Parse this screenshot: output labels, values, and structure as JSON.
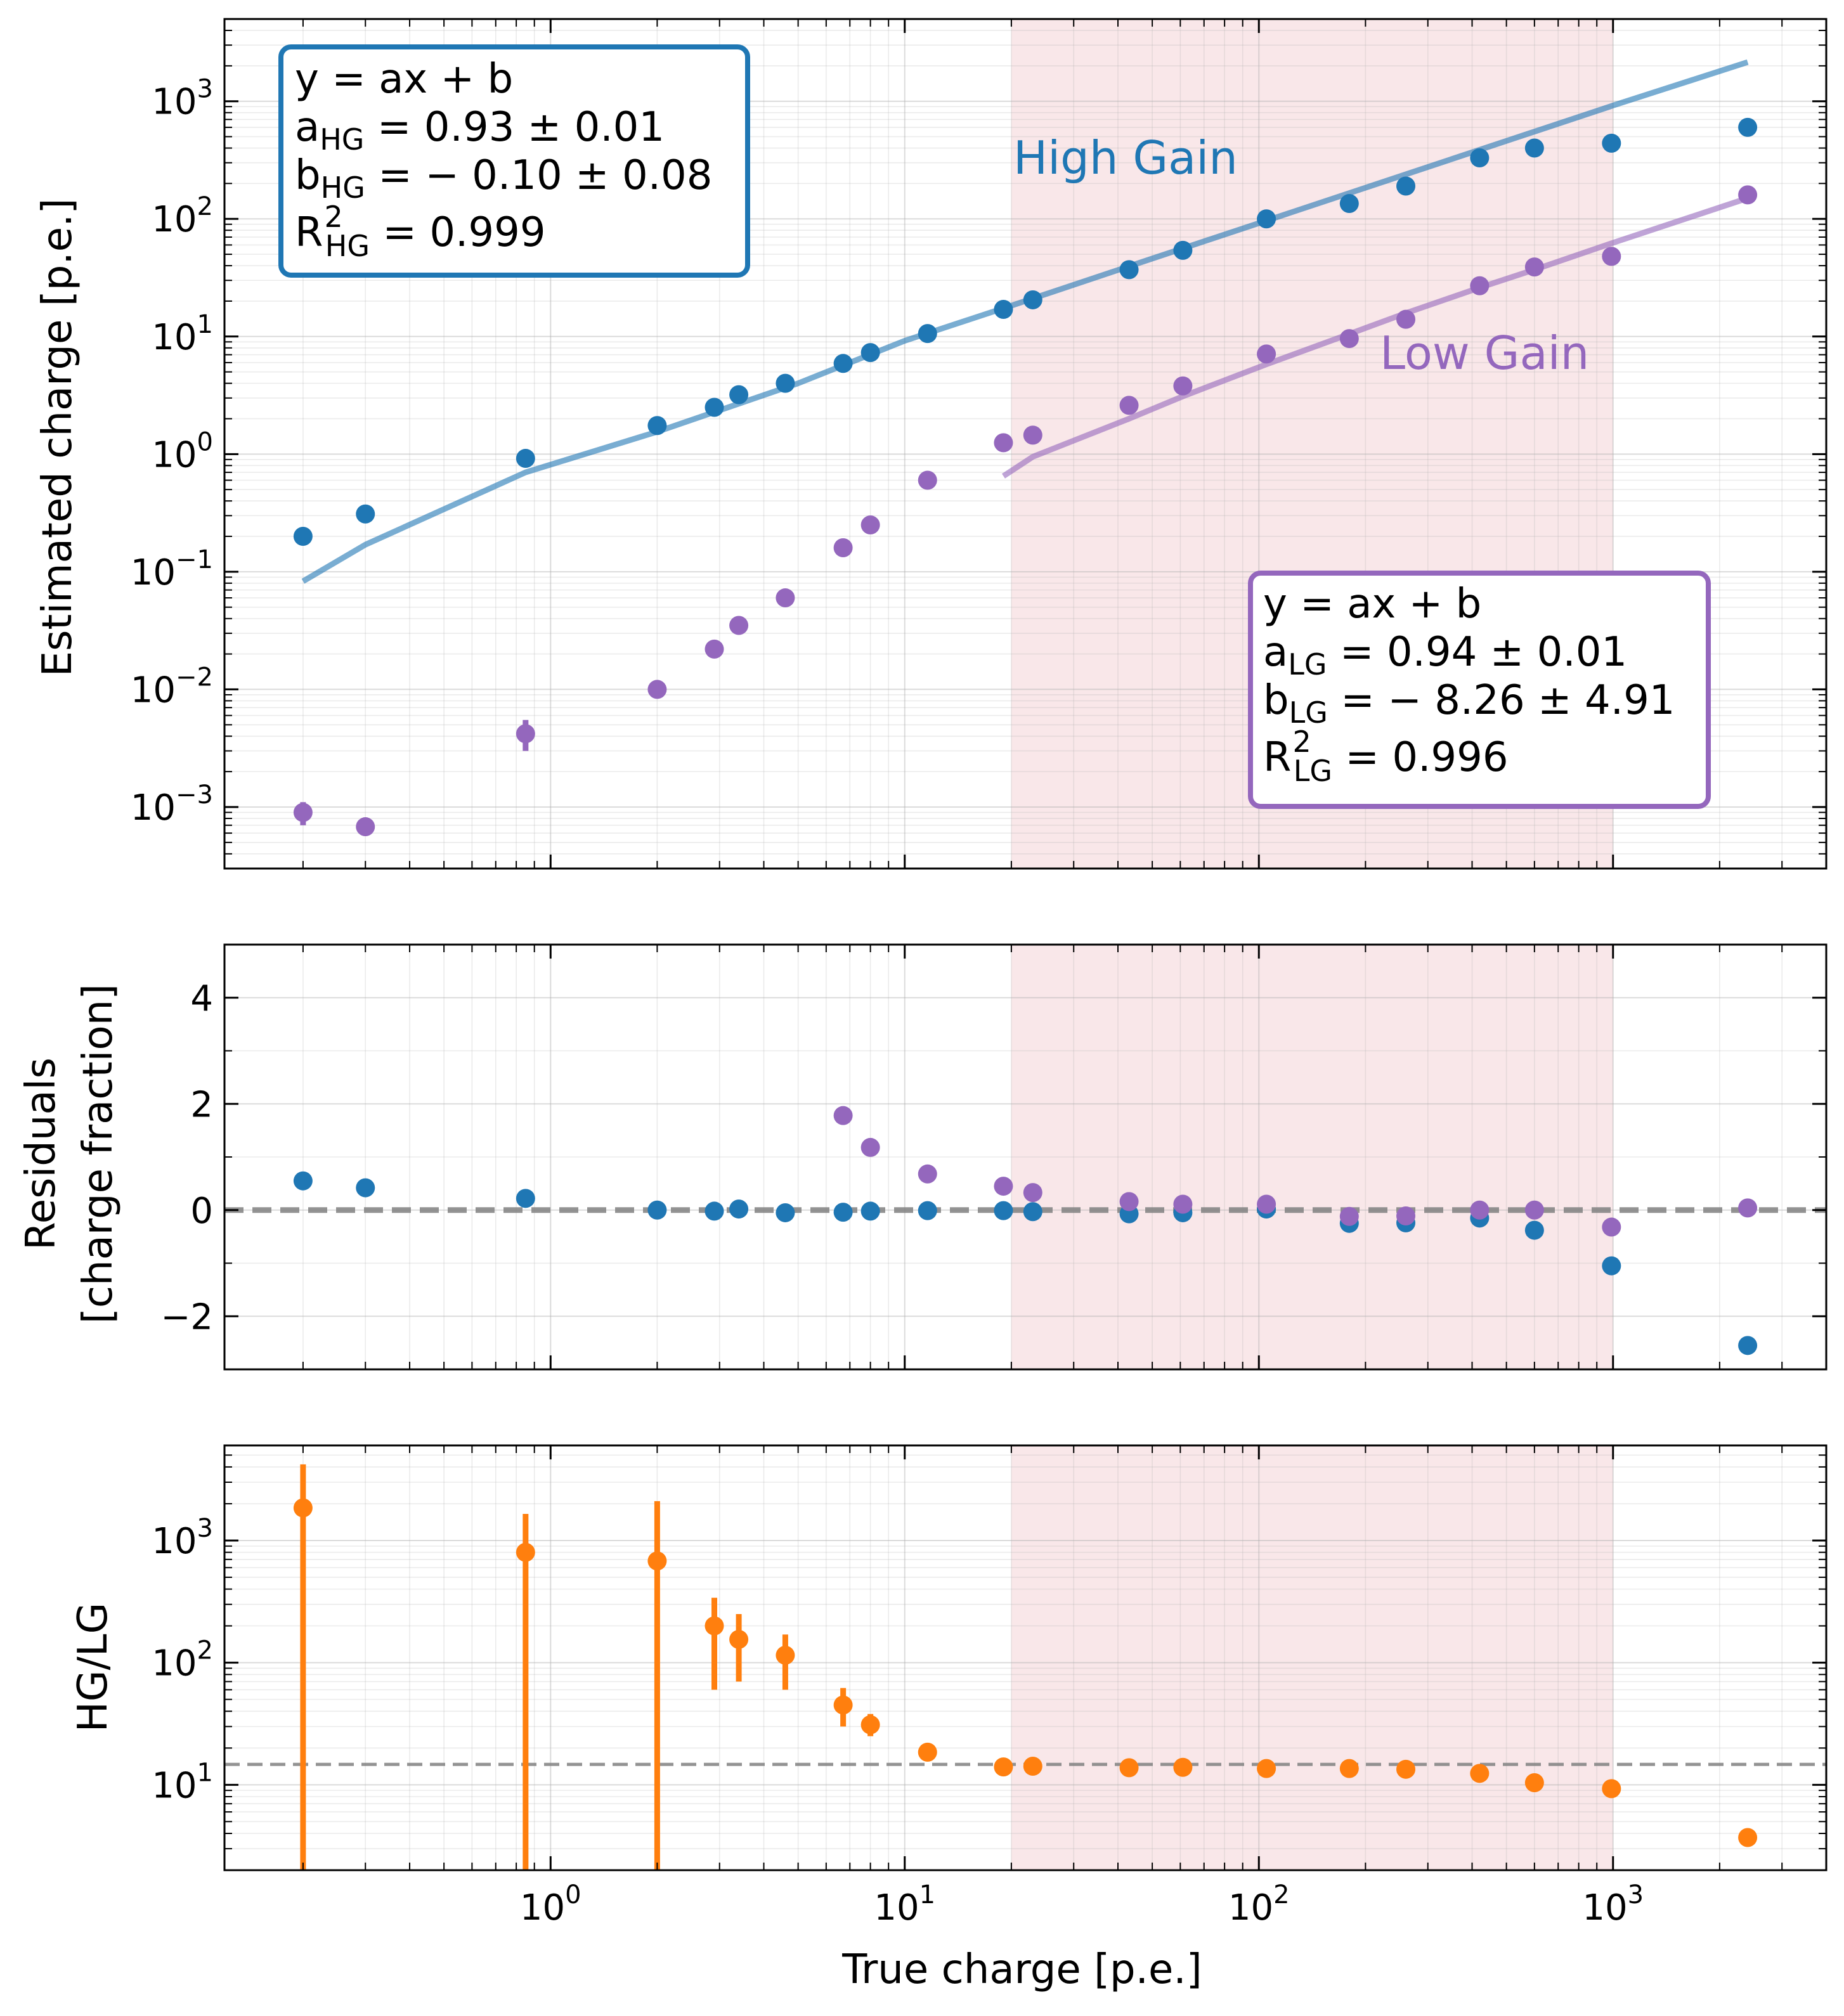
{
  "colors": {
    "hg": "#1f77b4",
    "lg": "#9467bd",
    "ratio": "#ff7f0e",
    "shade": "#f2c9cf",
    "ref_line": "#808080"
  },
  "chart_data": [
    {
      "type": "scatter",
      "panel": "top",
      "xscale": "log",
      "yscale": "log",
      "xlim": [
        0.12,
        4000
      ],
      "ylim": [
        0.0003,
        5000
      ],
      "ylabel": "Estimated charge [p.e.]",
      "shaded_x_range": [
        20,
        1000
      ],
      "grid": true,
      "x_tick_labels": [
        "10^0",
        "10^1",
        "10^2",
        "10^3"
      ],
      "y_ticks": [
        0.001,
        0.01,
        0.1,
        1,
        10,
        100,
        1000
      ],
      "y_tick_labels": [
        "10^-3",
        "10^-2",
        "10^-1",
        "10^0",
        "10^1",
        "10^2",
        "10^3"
      ],
      "series": [
        {
          "name": "High Gain",
          "color_key": "hg",
          "x": [
            0.2,
            0.3,
            0.85,
            2.0,
            2.9,
            3.4,
            4.6,
            6.7,
            8.0,
            11.6,
            19,
            23,
            43,
            61,
            105,
            180,
            260,
            420,
            600,
            990,
            2400
          ],
          "y": [
            0.2,
            0.31,
            0.92,
            1.75,
            2.5,
            3.2,
            4.0,
            5.9,
            7.3,
            10.6,
            17.0,
            20.5,
            37,
            54,
            100,
            135,
            190,
            330,
            400,
            440,
            600
          ]
        },
        {
          "name": "Low Gain",
          "color_key": "lg",
          "x": [
            0.2,
            0.3,
            0.85,
            2.0,
            2.9,
            3.4,
            4.6,
            6.7,
            8.0,
            11.6,
            19,
            23,
            43,
            61,
            105,
            180,
            260,
            420,
            600,
            990,
            2400
          ],
          "y": [
            0.0009,
            0.00068,
            0.0042,
            0.01,
            0.022,
            0.035,
            0.06,
            0.16,
            0.25,
            0.6,
            1.25,
            1.45,
            2.6,
            3.8,
            7.1,
            9.6,
            14,
            27,
            39,
            48,
            160
          ],
          "yerr_low": [
            0.0007,
            null,
            0.003,
            null,
            0.019,
            null,
            null,
            null,
            null,
            null,
            null,
            null,
            null,
            null,
            null,
            null,
            null,
            null,
            null,
            null,
            null
          ],
          "yerr_high": [
            0.0011,
            null,
            0.0055,
            null,
            0.025,
            null,
            null,
            null,
            null,
            null,
            null,
            null,
            null,
            null,
            null,
            null,
            null,
            null,
            null,
            null,
            null
          ]
        }
      ],
      "fit_lines": [
        {
          "color_key": "hg",
          "x": [
            0.2,
            0.3,
            0.85,
            2.0,
            5,
            10,
            20,
            50,
            100,
            200,
            500,
            1000,
            2400
          ],
          "y": [
            0.083,
            0.17,
            0.7,
            1.55,
            4.0,
            9.2,
            18.3,
            46,
            92,
            184,
            460,
            920,
            2150
          ]
        },
        {
          "color_key": "lg",
          "x": [
            19,
            23,
            43,
            61,
            105,
            180,
            260,
            420,
            600,
            990,
            2400
          ],
          "y": [
            0.65,
            0.95,
            2.0,
            3.1,
            5.8,
            10.5,
            15.8,
            26,
            37,
            62,
            150
          ]
        }
      ],
      "labels": {
        "hg_series": "High Gain",
        "lg_series": "Low Gain"
      },
      "legend_boxes": [
        {
          "id": "hg",
          "position": "top-left",
          "color_key": "hg",
          "line1": "y = ax + b",
          "line2": {
            "sym": "a",
            "sub": "HG",
            "rest": " = 0.93 ± 0.01"
          },
          "line3": {
            "sym": "b",
            "sub": "HG",
            "rest": " = − 0.10 ± 0.08"
          },
          "line4": {
            "sym": "R",
            "sup": "2",
            "sub": "HG",
            "rest": " = 0.999"
          }
        },
        {
          "id": "lg",
          "position": "bottom-right",
          "color_key": "lg",
          "line1": "y = ax + b",
          "line2": {
            "sym": "a",
            "sub": "LG",
            "rest": " = 0.94 ± 0.01"
          },
          "line3": {
            "sym": "b",
            "sub": "LG",
            "rest": " = − 8.26 ± 4.91"
          },
          "line4": {
            "sym": "R",
            "sup": "2",
            "sub": "LG",
            "rest": " = 0.996"
          }
        }
      ]
    },
    {
      "type": "scatter",
      "panel": "middle",
      "xscale": "log",
      "yscale": "linear",
      "xlim": [
        0.12,
        4000
      ],
      "ylim": [
        -3,
        5
      ],
      "ylabel_line1": "Residuals",
      "ylabel_line2": "[charge fraction]",
      "y_ticks": [
        -2,
        0,
        2,
        4
      ],
      "y_tick_labels": [
        "−2",
        "0",
        "2",
        "4"
      ],
      "reference_y": 0,
      "shaded_x_range": [
        20,
        1000
      ],
      "series": [
        {
          "name": "High Gain",
          "color_key": "hg",
          "x": [
            0.2,
            0.3,
            0.85,
            2.0,
            2.9,
            3.4,
            4.6,
            6.7,
            8.0,
            11.6,
            19,
            23,
            43,
            61,
            105,
            180,
            260,
            420,
            600,
            990,
            2400
          ],
          "y": [
            0.55,
            0.42,
            0.22,
            0.0,
            -0.02,
            0.02,
            -0.05,
            -0.04,
            -0.02,
            -0.01,
            -0.01,
            -0.03,
            -0.07,
            -0.05,
            0.02,
            -0.25,
            -0.24,
            -0.15,
            -0.38,
            -1.05,
            -2.55
          ]
        },
        {
          "name": "Low Gain",
          "color_key": "lg",
          "x": [
            6.7,
            8.0,
            11.6,
            19,
            23,
            43,
            61,
            105,
            180,
            260,
            420,
            600,
            990,
            2400
          ],
          "y": [
            1.78,
            1.18,
            0.68,
            0.45,
            0.33,
            0.16,
            0.11,
            0.11,
            -0.12,
            -0.11,
            0.0,
            0.0,
            -0.32,
            0.04
          ]
        }
      ]
    },
    {
      "type": "scatter",
      "panel": "bottom",
      "xscale": "log",
      "yscale": "log",
      "xlim": [
        0.12,
        4000
      ],
      "ylim": [
        2,
        6000
      ],
      "xlabel": "True charge [p.e.]",
      "ylabel": "HG/LG",
      "x_ticks": [
        1,
        10,
        100,
        1000
      ],
      "x_tick_labels": [
        "10^0",
        "10^1",
        "10^2",
        "10^3"
      ],
      "y_ticks": [
        10,
        100,
        1000
      ],
      "y_tick_labels": [
        "10^1",
        "10^2",
        "10^3"
      ],
      "reference_y": 14.7,
      "shaded_x_range": [
        20,
        1000
      ],
      "series": [
        {
          "name": "HG/LG",
          "color_key": "ratio",
          "x": [
            0.2,
            0.85,
            2.0,
            2.9,
            3.4,
            4.6,
            6.7,
            8.0,
            11.6,
            19,
            23,
            43,
            61,
            105,
            180,
            260,
            420,
            600,
            990,
            2400
          ],
          "y": [
            1850,
            800,
            680,
            200,
            155,
            115,
            45,
            31,
            18.5,
            14,
            14.2,
            13.8,
            13.9,
            13.6,
            13.6,
            13.4,
            12.4,
            10.4,
            9.3,
            3.7
          ],
          "yerr_low": [
            0.5,
            0.5,
            0.5,
            60,
            70,
            60,
            30,
            25,
            null,
            null,
            null,
            null,
            null,
            null,
            null,
            null,
            null,
            null,
            null,
            null
          ],
          "yerr_high": [
            4200,
            1650,
            2100,
            340,
            250,
            170,
            62,
            38,
            null,
            null,
            null,
            null,
            null,
            null,
            null,
            null,
            null,
            null,
            null,
            null
          ]
        }
      ]
    }
  ]
}
